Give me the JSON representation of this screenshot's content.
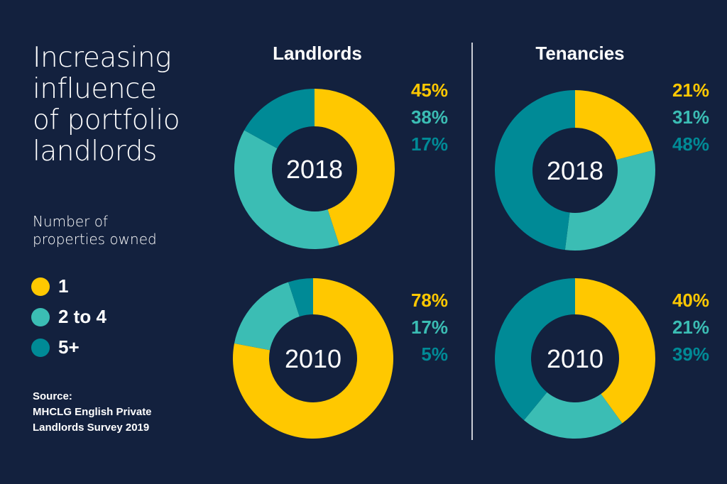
{
  "title_lines": [
    "Increasing",
    "influence",
    "of portfolio",
    "landlords"
  ],
  "subtitle_lines": [
    "Number of",
    "properties owned"
  ],
  "colors": {
    "background": "#13213e",
    "one": "#ffc800",
    "two_to_four": "#3bbdb4",
    "five_plus": "#008a96",
    "divider": "#c9ccd4"
  },
  "legend": [
    {
      "label": "1",
      "color": "#ffc800"
    },
    {
      "label": "2 to 4",
      "color": "#3bbdb4"
    },
    {
      "label": "5+",
      "color": "#008a96"
    }
  ],
  "source_lines": [
    "Source:",
    "MHCLG English Private",
    "Landlords Survey 2019"
  ],
  "columns": [
    "Landlords",
    "Tenancies"
  ],
  "chart_data": [
    {
      "type": "pie",
      "variant": "donut",
      "group": "Landlords",
      "center_label": "2018",
      "categories": [
        "1",
        "2 to 4",
        "5+"
      ],
      "values": [
        45,
        38,
        17
      ],
      "value_labels": [
        "45%",
        "38%",
        "17%"
      ]
    },
    {
      "type": "pie",
      "variant": "donut",
      "group": "Landlords",
      "center_label": "2010",
      "categories": [
        "1",
        "2 to 4",
        "5+"
      ],
      "values": [
        78,
        17,
        5
      ],
      "value_labels": [
        "78%",
        "17%",
        "5%"
      ]
    },
    {
      "type": "pie",
      "variant": "donut",
      "group": "Tenancies",
      "center_label": "2018",
      "categories": [
        "1",
        "2 to 4",
        "5+"
      ],
      "values": [
        21,
        31,
        48
      ],
      "value_labels": [
        "21%",
        "31%",
        "48%"
      ]
    },
    {
      "type": "pie",
      "variant": "donut",
      "group": "Tenancies",
      "center_label": "2010",
      "categories": [
        "1",
        "2 to 4",
        "5+"
      ],
      "values": [
        40,
        21,
        39
      ],
      "value_labels": [
        "40%",
        "21%",
        "39%"
      ]
    }
  ]
}
